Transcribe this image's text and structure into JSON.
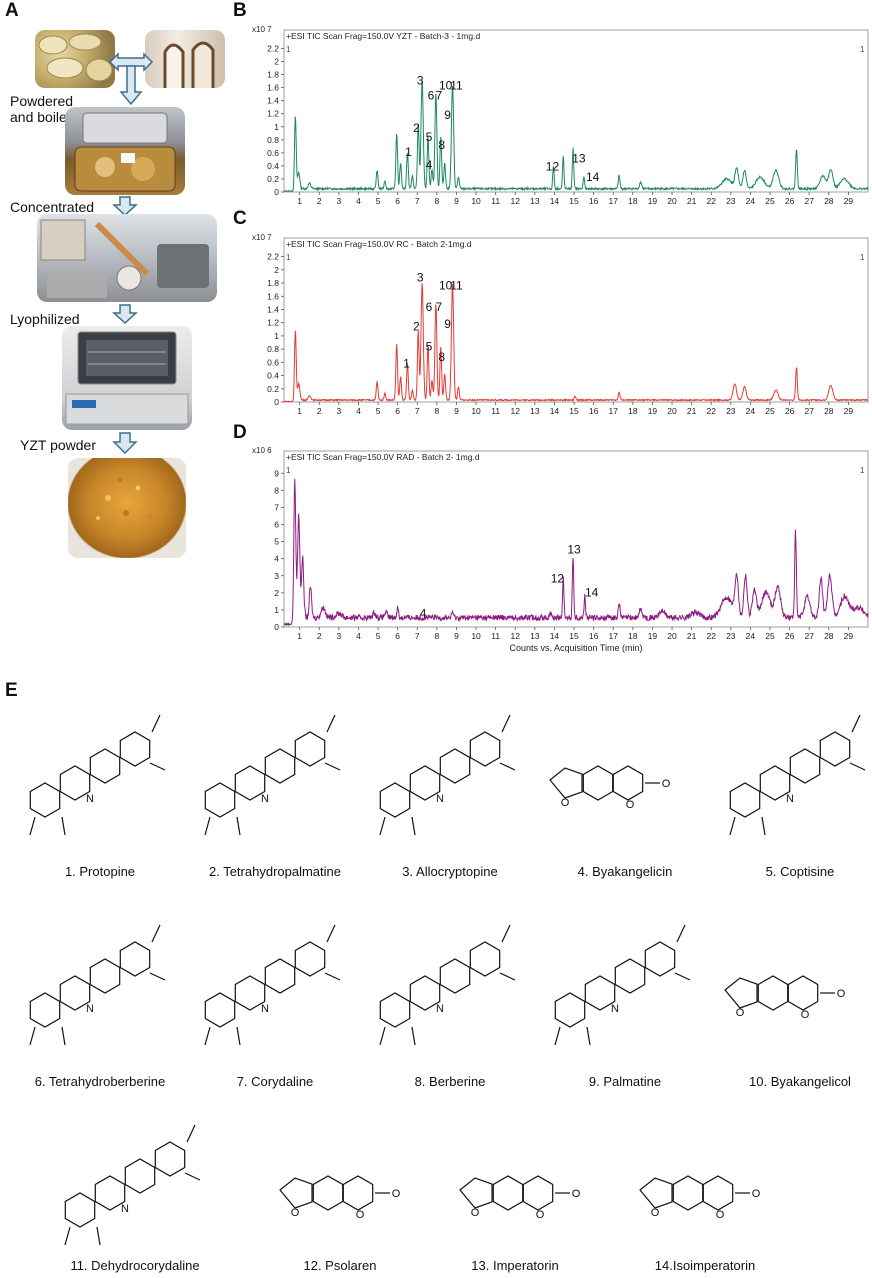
{
  "panel_labels": {
    "a": "A",
    "b": "B",
    "c": "C",
    "d": "D",
    "e": "E"
  },
  "workflow": {
    "steps": [
      "Powdered\nand boiled",
      "Concentrated",
      "Lyophilized",
      "YZT powder"
    ]
  },
  "colors": {
    "yzt": "#1b8a5a",
    "rc": "#e53935",
    "rad": "#8e1c83",
    "arrow_fill": "#dbe7f1",
    "arrow_stroke": "#3e6e8c"
  },
  "chart_data": [
    {
      "type": "line",
      "title": "+ESI TIC Scan Frag=150.0V YZT - Batch-3 - 1mg.d",
      "y_exponent_label": "x10 7",
      "corner_left": "1",
      "corner_right": "1",
      "y_ticks": [
        "0",
        "0.2",
        "0.4",
        "0.6",
        "0.8",
        "1",
        "1.2",
        "1.4",
        "1.6",
        "1.8",
        "2",
        "2.2"
      ],
      "ylim": [
        0,
        2.3
      ],
      "xlim": [
        0.2,
        30
      ],
      "x_ticks": [
        1,
        2,
        3,
        4,
        5,
        6,
        7,
        8,
        9,
        10,
        11,
        12,
        13,
        14,
        15,
        16,
        17,
        18,
        19,
        20,
        21,
        22,
        23,
        24,
        25,
        26,
        27,
        28,
        29
      ],
      "baseline": 0.05,
      "peaks": [
        [
          0.78,
          1.1,
          0.06
        ],
        [
          0.95,
          0.25,
          0.08
        ],
        [
          1.5,
          0.08,
          0.1
        ],
        [
          4.95,
          0.28,
          0.06
        ],
        [
          5.35,
          0.12,
          0.06
        ],
        [
          5.95,
          0.85,
          0.06
        ],
        [
          6.15,
          0.4,
          0.06
        ],
        [
          6.5,
          0.55,
          0.06
        ],
        [
          6.75,
          0.2,
          0.06
        ],
        [
          7.05,
          1.0,
          0.06
        ],
        [
          7.25,
          1.65,
          0.08
        ],
        [
          7.55,
          0.8,
          0.06
        ],
        [
          7.75,
          0.3,
          0.06
        ],
        [
          7.95,
          1.45,
          0.07
        ],
        [
          8.2,
          0.8,
          0.06
        ],
        [
          8.4,
          0.4,
          0.06
        ],
        [
          8.8,
          1.58,
          0.08
        ],
        [
          9.1,
          0.18,
          0.06
        ],
        [
          13.95,
          0.35,
          0.05
        ],
        [
          14.45,
          0.5,
          0.05
        ],
        [
          14.95,
          0.62,
          0.05
        ],
        [
          15.5,
          0.18,
          0.05
        ],
        [
          17.3,
          0.2,
          0.06
        ],
        [
          18.4,
          0.1,
          0.08
        ],
        [
          22.8,
          0.15,
          0.35
        ],
        [
          23.3,
          0.3,
          0.12
        ],
        [
          23.7,
          0.28,
          0.12
        ],
        [
          24.5,
          0.18,
          0.3
        ],
        [
          25.3,
          0.28,
          0.2
        ],
        [
          26.35,
          0.62,
          0.06
        ],
        [
          27.7,
          0.2,
          0.2
        ],
        [
          28.1,
          0.3,
          0.15
        ],
        [
          28.8,
          0.15,
          0.3
        ]
      ],
      "labels": [
        {
          "text": "1",
          "x": 6.55,
          "y": 0.55
        },
        {
          "text": "2",
          "x": 6.95,
          "y": 0.92
        },
        {
          "text": "3",
          "x": 7.15,
          "y": 1.65
        },
        {
          "text": "4",
          "x": 7.6,
          "y": 0.35
        },
        {
          "text": "5",
          "x": 7.6,
          "y": 0.78
        },
        {
          "text": "6",
          "x": 7.7,
          "y": 1.42
        },
        {
          "text": "7",
          "x": 8.1,
          "y": 1.42
        },
        {
          "text": "8",
          "x": 8.25,
          "y": 0.66
        },
        {
          "text": "9",
          "x": 8.55,
          "y": 1.12
        },
        {
          "text": "10",
          "x": 8.45,
          "y": 1.57
        },
        {
          "text": "11",
          "x": 9.0,
          "y": 1.57
        },
        {
          "text": "12",
          "x": 13.9,
          "y": 0.33
        },
        {
          "text": "13",
          "x": 15.25,
          "y": 0.45
        },
        {
          "text": "14",
          "x": 15.95,
          "y": 0.17
        }
      ]
    },
    {
      "type": "line",
      "title": "+ESI TIC Scan Frag=150.0V RC  - Batch 2-1mg.d",
      "y_exponent_label": "x10 7",
      "corner_left": "1",
      "corner_right": "1",
      "y_ticks": [
        "0",
        "0.2",
        "0.4",
        "0.6",
        "0.8",
        "1",
        "1.2",
        "1.4",
        "1.6",
        "1.8",
        "2",
        "2.2"
      ],
      "ylim": [
        0,
        2.3
      ],
      "xlim": [
        0.2,
        30
      ],
      "x_ticks": [
        1,
        2,
        3,
        4,
        5,
        6,
        7,
        8,
        9,
        10,
        11,
        12,
        13,
        14,
        15,
        16,
        17,
        18,
        19,
        20,
        21,
        22,
        23,
        24,
        25,
        26,
        27,
        28,
        29
      ],
      "baseline": 0.03,
      "peaks": [
        [
          0.78,
          1.05,
          0.06
        ],
        [
          0.95,
          0.25,
          0.08
        ],
        [
          1.5,
          0.06,
          0.1
        ],
        [
          4.95,
          0.28,
          0.06
        ],
        [
          5.35,
          0.1,
          0.06
        ],
        [
          5.95,
          0.85,
          0.06
        ],
        [
          6.15,
          0.35,
          0.06
        ],
        [
          6.5,
          0.55,
          0.06
        ],
        [
          6.75,
          0.15,
          0.06
        ],
        [
          7.05,
          1.05,
          0.06
        ],
        [
          7.25,
          1.78,
          0.08
        ],
        [
          7.55,
          0.85,
          0.06
        ],
        [
          7.75,
          0.3,
          0.06
        ],
        [
          7.95,
          1.45,
          0.07
        ],
        [
          8.2,
          0.8,
          0.06
        ],
        [
          8.4,
          0.4,
          0.06
        ],
        [
          8.8,
          1.75,
          0.08
        ],
        [
          9.1,
          0.2,
          0.06
        ],
        [
          15.05,
          0.06,
          0.05
        ],
        [
          17.3,
          0.12,
          0.06
        ],
        [
          23.2,
          0.25,
          0.12
        ],
        [
          23.7,
          0.2,
          0.12
        ],
        [
          25.3,
          0.15,
          0.15
        ],
        [
          26.35,
          0.5,
          0.06
        ],
        [
          28.1,
          0.22,
          0.15
        ]
      ],
      "labels": [
        {
          "text": "1",
          "x": 6.45,
          "y": 0.52
        },
        {
          "text": "2",
          "x": 6.95,
          "y": 1.08
        },
        {
          "text": "3",
          "x": 7.15,
          "y": 1.82
        },
        {
          "text": "5",
          "x": 7.6,
          "y": 0.78
        },
        {
          "text": "6",
          "x": 7.6,
          "y": 1.38
        },
        {
          "text": "7",
          "x": 8.1,
          "y": 1.38
        },
        {
          "text": "8",
          "x": 8.25,
          "y": 0.62
        },
        {
          "text": "9",
          "x": 8.55,
          "y": 1.12
        },
        {
          "text": "10",
          "x": 8.45,
          "y": 1.7
        },
        {
          "text": "11",
          "x": 9.0,
          "y": 1.7
        }
      ]
    },
    {
      "type": "line",
      "title": "+ESI TIC Scan Frag=150.0V RAD - Batch 2- 1mg.d",
      "y_exponent_label": "x10 6",
      "corner_left": "1",
      "corner_right": "1",
      "y_ticks": [
        "0",
        "1",
        "2",
        "3",
        "4",
        "5",
        "6",
        "7",
        "8",
        "9"
      ],
      "ylim": [
        0,
        9.6
      ],
      "xlim": [
        0.2,
        30
      ],
      "x_ticks": [
        1,
        2,
        3,
        4,
        5,
        6,
        7,
        8,
        9,
        10,
        11,
        12,
        13,
        14,
        15,
        16,
        17,
        18,
        19,
        20,
        21,
        22,
        23,
        24,
        25,
        26,
        27,
        28,
        29
      ],
      "xlabel": "Counts vs. Acquisition Time (min)",
      "baseline": 0.55,
      "peaks": [
        [
          0.75,
          8.0,
          0.07
        ],
        [
          0.95,
          6.0,
          0.08
        ],
        [
          1.15,
          3.5,
          0.08
        ],
        [
          1.55,
          1.8,
          0.08
        ],
        [
          2.2,
          0.6,
          0.15
        ],
        [
          3.0,
          0.25,
          0.2
        ],
        [
          4.8,
          0.3,
          0.1
        ],
        [
          5.4,
          0.3,
          0.1
        ],
        [
          6.0,
          0.6,
          0.06
        ],
        [
          8.8,
          0.35,
          0.06
        ],
        [
          13.8,
          0.2,
          0.08
        ],
        [
          14.45,
          2.3,
          0.05
        ],
        [
          14.95,
          3.6,
          0.05
        ],
        [
          15.55,
          1.3,
          0.05
        ],
        [
          17.3,
          0.9,
          0.06
        ],
        [
          18.4,
          0.5,
          0.1
        ],
        [
          19.5,
          0.4,
          0.2
        ],
        [
          21.2,
          0.3,
          0.3
        ],
        [
          22.8,
          1.2,
          0.4
        ],
        [
          23.3,
          2.4,
          0.12
        ],
        [
          23.75,
          2.5,
          0.12
        ],
        [
          24.2,
          1.6,
          0.15
        ],
        [
          24.8,
          1.5,
          0.3
        ],
        [
          25.4,
          1.8,
          0.2
        ],
        [
          26.3,
          5.0,
          0.06
        ],
        [
          26.9,
          1.2,
          0.2
        ],
        [
          27.6,
          2.3,
          0.12
        ],
        [
          28.05,
          2.5,
          0.15
        ],
        [
          28.8,
          1.2,
          0.3
        ],
        [
          29.5,
          0.6,
          0.4
        ]
      ],
      "labels": [
        {
          "text": "4",
          "x": 7.3,
          "y": 0.55
        },
        {
          "text": "12",
          "x": 14.15,
          "y": 2.6
        },
        {
          "text": "13",
          "x": 15.0,
          "y": 4.3
        },
        {
          "text": "14",
          "x": 15.9,
          "y": 1.8
        }
      ]
    }
  ],
  "compounds": [
    {
      "caption": "1. Protopine",
      "smiles": "O=C1Cc2ccc3OCOc3c2CN(C)CCc2cc3OCOc3cc12"
    },
    {
      "caption": "2. Tetrahydropalmatine",
      "smiles": "COc1ccc2C[C@H]3N(CCc4cc(OC)c(OC)cc34)Cc2c1OC"
    },
    {
      "caption": "3. Allocryptopine",
      "smiles": "COc1ccc2CC(=O)c3cc4OCOc4cc3CCN(C)Cc2c1OC"
    },
    {
      "caption": "4. Byakangelicin",
      "smiles": "COc1c2ccoc2c(OCC(O)C(C)(C)O)c2oc(=O)ccc12"
    },
    {
      "caption": "5. Coptisine",
      "smiles": "c1cc2cc3[n+](cc2c2OCOc12)CCc1cc2OCOc2cc13"
    },
    {
      "caption": "6. Tetrahydroberberine",
      "smiles": "COc1ccc2C[C@H]3N(CCc4cc5OCOc5cc34)Cc2c1OC"
    },
    {
      "caption": "7. Corydaline",
      "smiles": "COc1ccc2[C@@H](C)[C@H]3N(CCc4cc(OC)c(OC)cc34)Cc2c1OC"
    },
    {
      "caption": "8. Berberine",
      "smiles": "COc1ccc2cc3[n+](cc2c1OC)CCc1cc2OCOc2cc13"
    },
    {
      "caption": "9. Palmatine",
      "smiles": "COc1ccc2cc3[n+](cc2c1OC)CCc1cc(OC)c(OC)cc13"
    },
    {
      "caption": "10. Byakangelicol",
      "smiles": "COc1c2ccoc2c(OCC2OC2(C)C)c2oc(=O)ccc12"
    },
    {
      "caption": "11. Dehydrocorydaline",
      "smiles": "COc1ccc2c(C)c3[n+](cc2c1OC)CCc1cc(OC)c(OC)cc13"
    },
    {
      "caption": "12. Psolaren",
      "smiles": "O=c1ccc2cc3ccoc3cc2o1"
    },
    {
      "caption": "13. Imperatorin",
      "smiles": "CC(C)=CCOc1c2occc2cc2ccc(=O)oc12"
    },
    {
      "caption": "14.Isoimperatorin",
      "smiles": "CC(C)=CCOc1c2ccoc2cc2oc(=O)ccc12"
    }
  ]
}
